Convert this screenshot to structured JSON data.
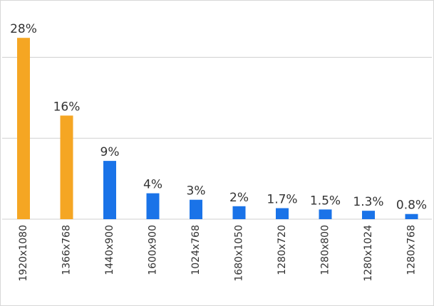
{
  "chart_data": {
    "type": "bar",
    "categories": [
      "1920x1080",
      "1366x768",
      "1440x900",
      "1600x900",
      "1024x768",
      "1680x1050",
      "1280x720",
      "1280x800",
      "1280x1024",
      "1280x768"
    ],
    "values": [
      28,
      16,
      9,
      4,
      3,
      2,
      1.7,
      1.5,
      1.3,
      0.8
    ],
    "value_labels": [
      "28%",
      "16%",
      "9%",
      "4%",
      "3%",
      "2%",
      "1.7%",
      "1.5%",
      "1.3%",
      "0.8%"
    ],
    "colors": [
      "#f5a623",
      "#f5a623",
      "#1a73e8",
      "#1a73e8",
      "#1a73e8",
      "#1a73e8",
      "#1a73e8",
      "#1a73e8",
      "#1a73e8",
      "#1a73e8"
    ],
    "ylim": [
      0,
      30
    ],
    "gridlines": [
      0,
      12.5,
      25
    ],
    "grid": true
  }
}
